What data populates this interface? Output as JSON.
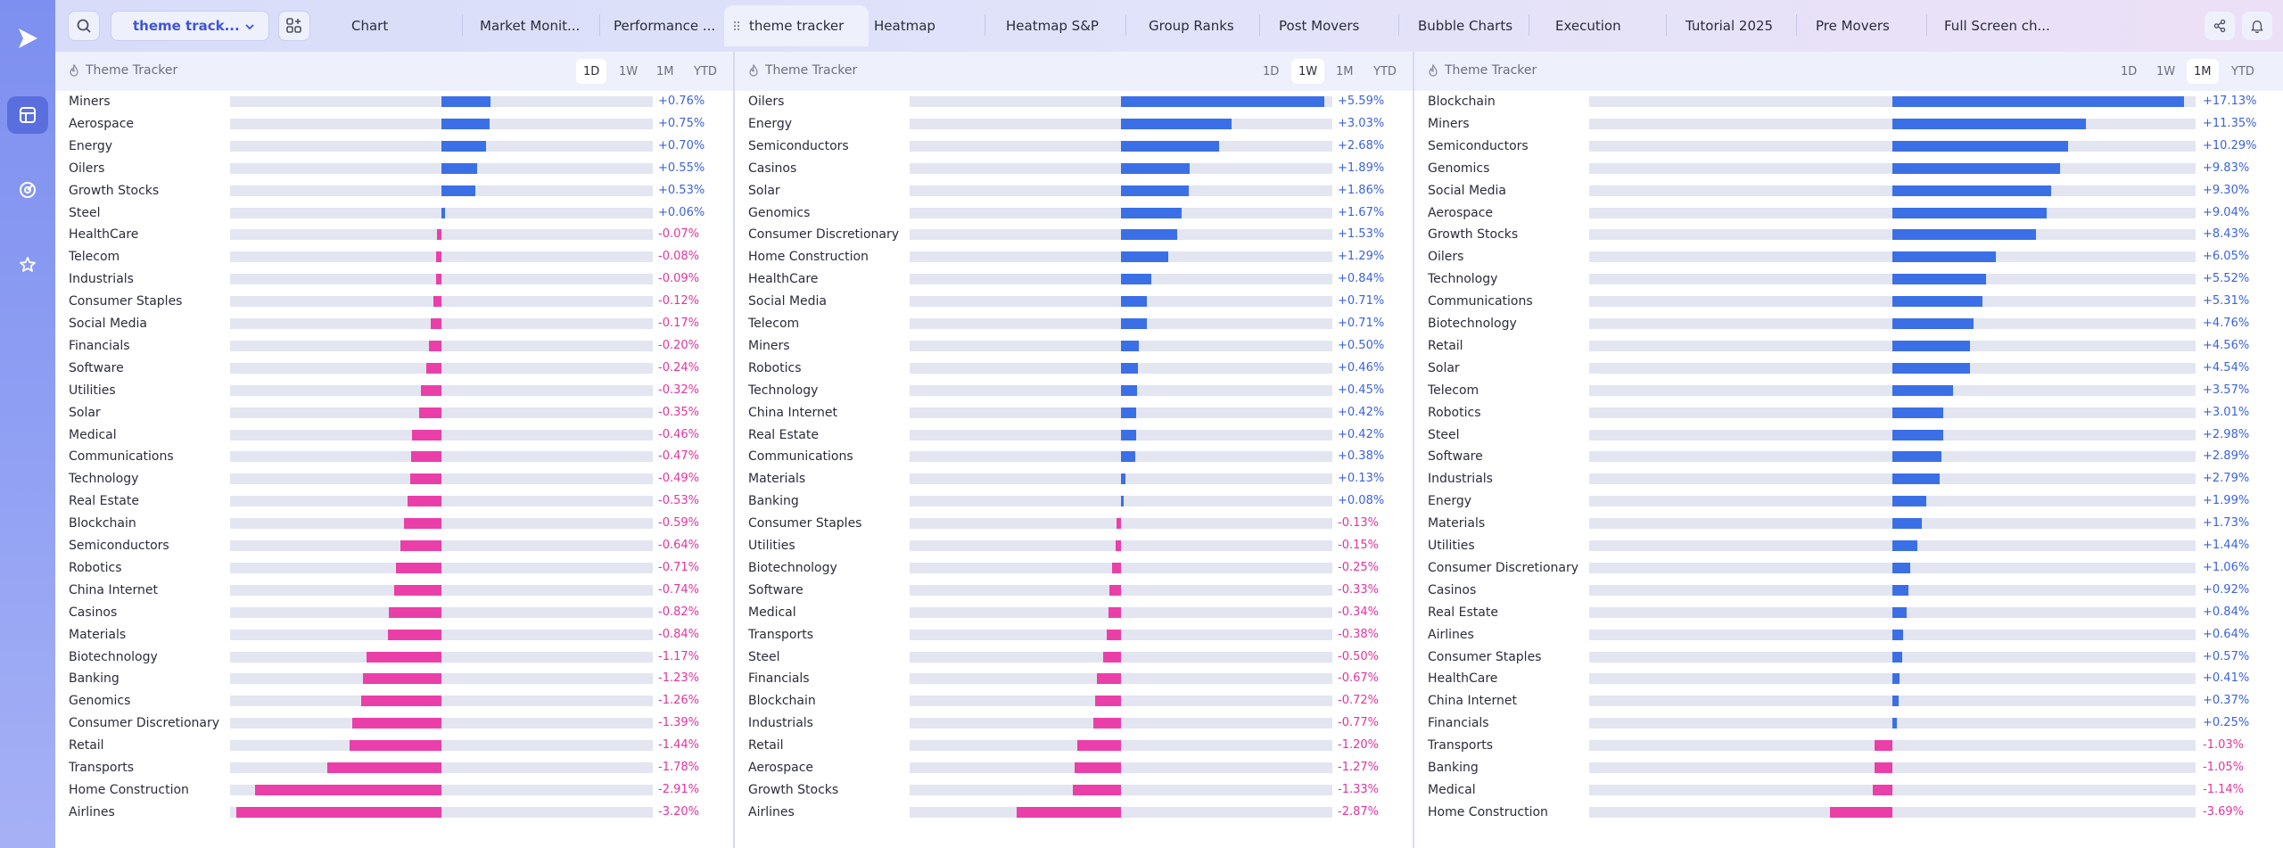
{
  "app": {
    "tabs": [
      {
        "label": "Chart"
      },
      {
        "label": "Market Monit..."
      },
      {
        "label": "Performance ..."
      },
      {
        "label": "theme tracker"
      },
      {
        "label": "Heatmap"
      },
      {
        "label": "Heatmap S&P"
      },
      {
        "label": "Group Ranks"
      },
      {
        "label": "Post Movers"
      },
      {
        "label": "Bubble Charts"
      },
      {
        "label": "Execution"
      },
      {
        "label": "Tutorial 2025"
      },
      {
        "label": "Pre Movers"
      },
      {
        "label": "Full Screen ch..."
      }
    ],
    "layout_select": "theme track...",
    "active_tab": "theme tracker"
  },
  "colors": {
    "positive": "#3b6fe6",
    "negative": "#ea3fa8",
    "accent": "#3f55d9"
  },
  "panels": [
    {
      "title": "Theme Tracker",
      "periods": [
        "1D",
        "1W",
        "1M",
        "YTD"
      ],
      "selected_period": "1D",
      "rows": [
        {
          "name": "Miners",
          "value": 0.76,
          "label": "+0.76%"
        },
        {
          "name": "Aerospace",
          "value": 0.75,
          "label": "+0.75%"
        },
        {
          "name": "Energy",
          "value": 0.7,
          "label": "+0.70%"
        },
        {
          "name": "Oilers",
          "value": 0.55,
          "label": "+0.55%"
        },
        {
          "name": "Growth Stocks",
          "value": 0.53,
          "label": "+0.53%"
        },
        {
          "name": "Steel",
          "value": 0.06,
          "label": "+0.06%"
        },
        {
          "name": "HealthCare",
          "value": -0.07,
          "label": "-0.07%"
        },
        {
          "name": "Telecom",
          "value": -0.08,
          "label": "-0.08%"
        },
        {
          "name": "Industrials",
          "value": -0.09,
          "label": "-0.09%"
        },
        {
          "name": "Consumer Staples",
          "value": -0.12,
          "label": "-0.12%"
        },
        {
          "name": "Social Media",
          "value": -0.17,
          "label": "-0.17%"
        },
        {
          "name": "Financials",
          "value": -0.2,
          "label": "-0.20%"
        },
        {
          "name": "Software",
          "value": -0.24,
          "label": "-0.24%"
        },
        {
          "name": "Utilities",
          "value": -0.32,
          "label": "-0.32%"
        },
        {
          "name": "Solar",
          "value": -0.35,
          "label": "-0.35%"
        },
        {
          "name": "Medical",
          "value": -0.46,
          "label": "-0.46%"
        },
        {
          "name": "Communications",
          "value": -0.47,
          "label": "-0.47%"
        },
        {
          "name": "Technology",
          "value": -0.49,
          "label": "-0.49%"
        },
        {
          "name": "Real Estate",
          "value": -0.53,
          "label": "-0.53%"
        },
        {
          "name": "Blockchain",
          "value": -0.59,
          "label": "-0.59%"
        },
        {
          "name": "Semiconductors",
          "value": -0.64,
          "label": "-0.64%"
        },
        {
          "name": "Robotics",
          "value": -0.71,
          "label": "-0.71%"
        },
        {
          "name": "China Internet",
          "value": -0.74,
          "label": "-0.74%"
        },
        {
          "name": "Casinos",
          "value": -0.82,
          "label": "-0.82%"
        },
        {
          "name": "Materials",
          "value": -0.84,
          "label": "-0.84%"
        },
        {
          "name": "Biotechnology",
          "value": -1.17,
          "label": "-1.17%"
        },
        {
          "name": "Banking",
          "value": -1.23,
          "label": "-1.23%"
        },
        {
          "name": "Genomics",
          "value": -1.26,
          "label": "-1.26%"
        },
        {
          "name": "Consumer Discretionary",
          "value": -1.39,
          "label": "-1.39%"
        },
        {
          "name": "Retail",
          "value": -1.44,
          "label": "-1.44%"
        },
        {
          "name": "Transports",
          "value": -1.78,
          "label": "-1.78%"
        },
        {
          "name": "Home Construction",
          "value": -2.91,
          "label": "-2.91%"
        },
        {
          "name": "Airlines",
          "value": -3.2,
          "label": "-3.20%"
        }
      ]
    },
    {
      "title": "Theme Tracker",
      "periods": [
        "1D",
        "1W",
        "1M",
        "YTD"
      ],
      "selected_period": "1W",
      "rows": [
        {
          "name": "Oilers",
          "value": 5.59,
          "label": "+5.59%"
        },
        {
          "name": "Energy",
          "value": 3.03,
          "label": "+3.03%"
        },
        {
          "name": "Semiconductors",
          "value": 2.68,
          "label": "+2.68%"
        },
        {
          "name": "Casinos",
          "value": 1.89,
          "label": "+1.89%"
        },
        {
          "name": "Solar",
          "value": 1.86,
          "label": "+1.86%"
        },
        {
          "name": "Genomics",
          "value": 1.67,
          "label": "+1.67%"
        },
        {
          "name": "Consumer Discretionary",
          "value": 1.53,
          "label": "+1.53%"
        },
        {
          "name": "Home Construction",
          "value": 1.29,
          "label": "+1.29%"
        },
        {
          "name": "HealthCare",
          "value": 0.84,
          "label": "+0.84%"
        },
        {
          "name": "Social Media",
          "value": 0.71,
          "label": "+0.71%"
        },
        {
          "name": "Telecom",
          "value": 0.71,
          "label": "+0.71%"
        },
        {
          "name": "Miners",
          "value": 0.5,
          "label": "+0.50%"
        },
        {
          "name": "Robotics",
          "value": 0.46,
          "label": "+0.46%"
        },
        {
          "name": "Technology",
          "value": 0.45,
          "label": "+0.45%"
        },
        {
          "name": "China Internet",
          "value": 0.42,
          "label": "+0.42%"
        },
        {
          "name": "Real Estate",
          "value": 0.42,
          "label": "+0.42%"
        },
        {
          "name": "Communications",
          "value": 0.38,
          "label": "+0.38%"
        },
        {
          "name": "Materials",
          "value": 0.13,
          "label": "+0.13%"
        },
        {
          "name": "Banking",
          "value": 0.08,
          "label": "+0.08%"
        },
        {
          "name": "Consumer Staples",
          "value": -0.13,
          "label": "-0.13%"
        },
        {
          "name": "Utilities",
          "value": -0.15,
          "label": "-0.15%"
        },
        {
          "name": "Biotechnology",
          "value": -0.25,
          "label": "-0.25%"
        },
        {
          "name": "Software",
          "value": -0.33,
          "label": "-0.33%"
        },
        {
          "name": "Medical",
          "value": -0.34,
          "label": "-0.34%"
        },
        {
          "name": "Transports",
          "value": -0.38,
          "label": "-0.38%"
        },
        {
          "name": "Steel",
          "value": -0.5,
          "label": "-0.50%"
        },
        {
          "name": "Financials",
          "value": -0.67,
          "label": "-0.67%"
        },
        {
          "name": "Blockchain",
          "value": -0.72,
          "label": "-0.72%"
        },
        {
          "name": "Industrials",
          "value": -0.77,
          "label": "-0.77%"
        },
        {
          "name": "Retail",
          "value": -1.2,
          "label": "-1.20%"
        },
        {
          "name": "Aerospace",
          "value": -1.27,
          "label": "-1.27%"
        },
        {
          "name": "Growth Stocks",
          "value": -1.33,
          "label": "-1.33%"
        },
        {
          "name": "Airlines",
          "value": -2.87,
          "label": "-2.87%"
        }
      ]
    },
    {
      "title": "Theme Tracker",
      "periods": [
        "1D",
        "1W",
        "1M",
        "YTD"
      ],
      "selected_period": "1M",
      "rows": [
        {
          "name": "Blockchain",
          "value": 17.13,
          "label": "+17.13%"
        },
        {
          "name": "Miners",
          "value": 11.35,
          "label": "+11.35%"
        },
        {
          "name": "Semiconductors",
          "value": 10.29,
          "label": "+10.29%"
        },
        {
          "name": "Genomics",
          "value": 9.83,
          "label": "+9.83%"
        },
        {
          "name": "Social Media",
          "value": 9.3,
          "label": "+9.30%"
        },
        {
          "name": "Aerospace",
          "value": 9.04,
          "label": "+9.04%"
        },
        {
          "name": "Growth Stocks",
          "value": 8.43,
          "label": "+8.43%"
        },
        {
          "name": "Oilers",
          "value": 6.05,
          "label": "+6.05%"
        },
        {
          "name": "Technology",
          "value": 5.52,
          "label": "+5.52%"
        },
        {
          "name": "Communications",
          "value": 5.31,
          "label": "+5.31%"
        },
        {
          "name": "Biotechnology",
          "value": 4.76,
          "label": "+4.76%"
        },
        {
          "name": "Retail",
          "value": 4.56,
          "label": "+4.56%"
        },
        {
          "name": "Solar",
          "value": 4.54,
          "label": "+4.54%"
        },
        {
          "name": "Telecom",
          "value": 3.57,
          "label": "+3.57%"
        },
        {
          "name": "Robotics",
          "value": 3.01,
          "label": "+3.01%"
        },
        {
          "name": "Steel",
          "value": 2.98,
          "label": "+2.98%"
        },
        {
          "name": "Software",
          "value": 2.89,
          "label": "+2.89%"
        },
        {
          "name": "Industrials",
          "value": 2.79,
          "label": "+2.79%"
        },
        {
          "name": "Energy",
          "value": 1.99,
          "label": "+1.99%"
        },
        {
          "name": "Materials",
          "value": 1.73,
          "label": "+1.73%"
        },
        {
          "name": "Utilities",
          "value": 1.44,
          "label": "+1.44%"
        },
        {
          "name": "Consumer Discretionary",
          "value": 1.06,
          "label": "+1.06%"
        },
        {
          "name": "Casinos",
          "value": 0.92,
          "label": "+0.92%"
        },
        {
          "name": "Real Estate",
          "value": 0.84,
          "label": "+0.84%"
        },
        {
          "name": "Airlines",
          "value": 0.64,
          "label": "+0.64%"
        },
        {
          "name": "Consumer Staples",
          "value": 0.57,
          "label": "+0.57%"
        },
        {
          "name": "HealthCare",
          "value": 0.41,
          "label": "+0.41%"
        },
        {
          "name": "China Internet",
          "value": 0.37,
          "label": "+0.37%"
        },
        {
          "name": "Financials",
          "value": 0.25,
          "label": "+0.25%"
        },
        {
          "name": "Transports",
          "value": -1.03,
          "label": "-1.03%"
        },
        {
          "name": "Banking",
          "value": -1.05,
          "label": "-1.05%"
        },
        {
          "name": "Medical",
          "value": -1.14,
          "label": "-1.14%"
        },
        {
          "name": "Home Construction",
          "value": -3.69,
          "label": "-3.69%"
        }
      ]
    }
  ]
}
